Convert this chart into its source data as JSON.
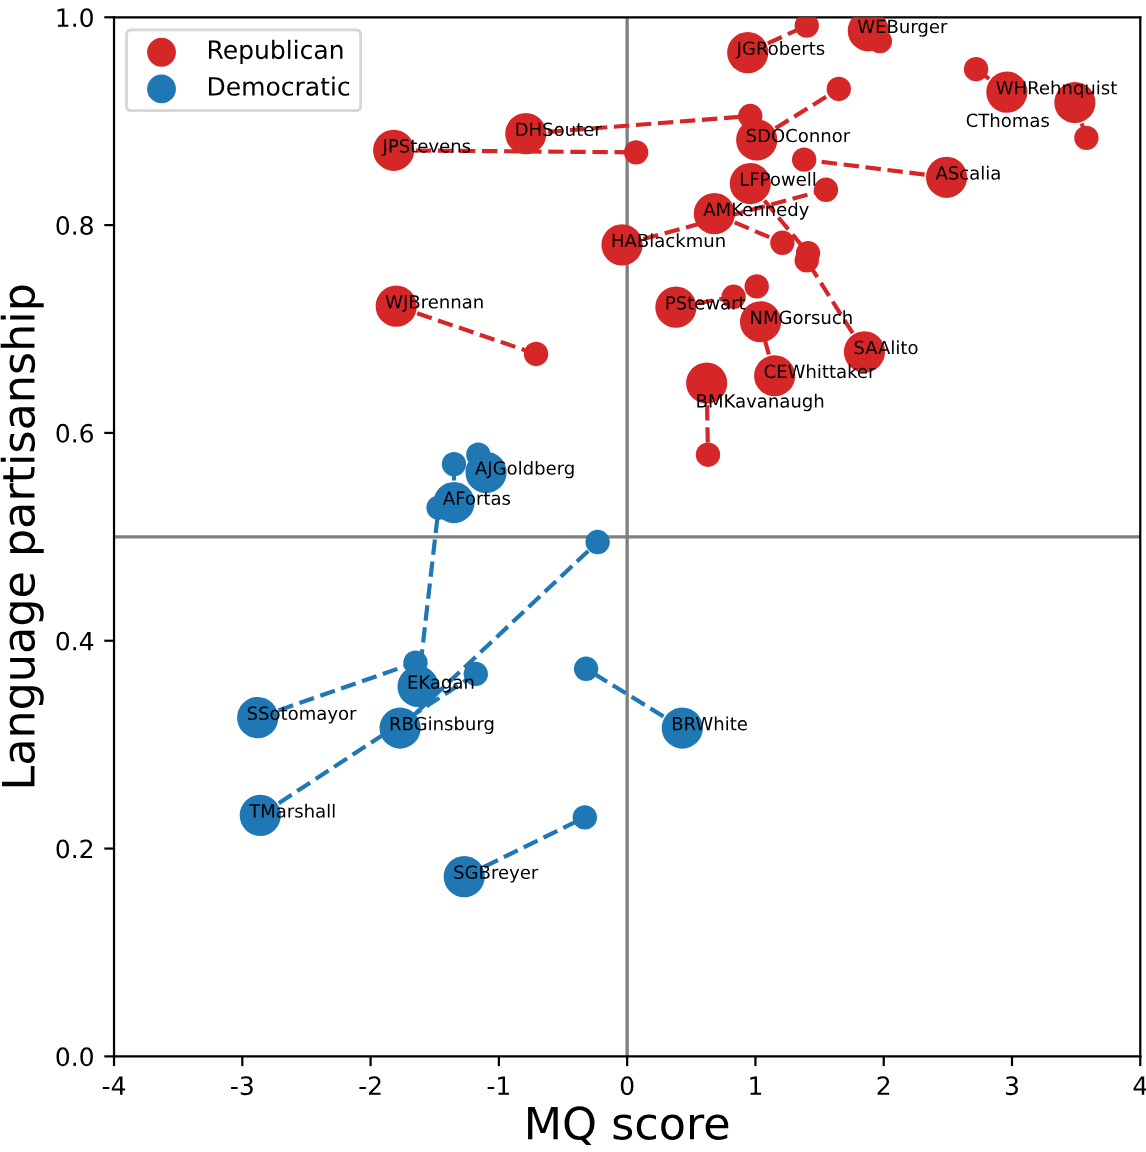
{
  "chart_data": {
    "type": "bubble",
    "xlabel": "MQ score",
    "ylabel": "Language partisanship",
    "xlim": [
      -4,
      4
    ],
    "ylim": [
      0,
      1.0
    ],
    "xticks": [
      -4,
      -3,
      -2,
      -1,
      0,
      1,
      2,
      3,
      4
    ],
    "yticks": [
      {
        "value": 0,
        "label": "0.0"
      },
      {
        "value": 0.2,
        "label": "0.2"
      },
      {
        "value": 0.4,
        "label": "0.4"
      },
      {
        "value": 0.6,
        "label": "0.6"
      },
      {
        "value": 0.8,
        "label": "0.8"
      },
      {
        "value": 1.0,
        "label": "1.0"
      }
    ],
    "grid": false,
    "legend": "top left",
    "ref_lines": [
      {
        "axis": "x",
        "value": 0,
        "color": "#808080"
      },
      {
        "axis": "y",
        "value": 0.5,
        "color": "#808080"
      }
    ],
    "series": [
      {
        "type": "line",
        "color": "#d62728",
        "line_style": "dashed",
        "marker": "none",
        "x": [
          0.94,
          1.4
        ],
        "values": [
          0.966,
          0.992
        ]
      },
      {
        "type": "line",
        "color": "#d62728",
        "line_style": "dashed",
        "marker": "none",
        "x": [
          2.96,
          2.72
        ],
        "values": [
          0.928,
          0.95
        ]
      },
      {
        "type": "line",
        "color": "#d62728",
        "line_style": "dashed",
        "marker": "none",
        "x": [
          3.49,
          3.58
        ],
        "values": [
          0.918,
          0.884
        ]
      },
      {
        "type": "line",
        "color": "#d62728",
        "line_style": "dashed",
        "marker": "none",
        "x": [
          1.01,
          1.65
        ],
        "values": [
          0.882,
          0.931
        ]
      },
      {
        "type": "line",
        "color": "#d62728",
        "line_style": "dashed",
        "marker": "none",
        "x": [
          -0.79,
          0.96
        ],
        "values": [
          0.888,
          0.905
        ]
      },
      {
        "type": "line",
        "color": "#d62728",
        "line_style": "dashed",
        "marker": "none",
        "x": [
          -1.82,
          0.07
        ],
        "values": [
          0.872,
          0.87
        ]
      },
      {
        "type": "line",
        "color": "#d62728",
        "line_style": "dashed",
        "marker": "none",
        "x": [
          2.49,
          1.38
        ],
        "values": [
          0.846,
          0.863
        ]
      },
      {
        "type": "line",
        "color": "#d62728",
        "line_style": "dashed",
        "marker": "none",
        "x": [
          0.96,
          1.41
        ],
        "values": [
          0.84,
          0.773
        ]
      },
      {
        "type": "line",
        "color": "#d62728",
        "line_style": "dashed",
        "marker": "none",
        "x": [
          0.68,
          1.21
        ],
        "values": [
          0.811,
          0.783
        ]
      },
      {
        "type": "line",
        "color": "#d62728",
        "line_style": "dashed",
        "marker": "none",
        "x": [
          -0.04,
          1.55
        ],
        "values": [
          0.781,
          0.834
        ]
      },
      {
        "type": "line",
        "color": "#d62728",
        "line_style": "dashed",
        "marker": "none",
        "x": [
          0.38,
          0.83
        ],
        "values": [
          0.721,
          0.731
        ]
      },
      {
        "type": "line",
        "color": "#d62728",
        "line_style": "dashed",
        "marker": "none",
        "x": [
          1.15,
          1.05
        ],
        "values": [
          0.655,
          0.7
        ]
      },
      {
        "type": "line",
        "color": "#d62728",
        "line_style": "dashed",
        "marker": "none",
        "x": [
          1.85,
          1.4
        ],
        "values": [
          0.678,
          0.766
        ]
      },
      {
        "type": "line",
        "color": "#d62728",
        "line_style": "dashed",
        "marker": "none",
        "x": [
          0.62,
          0.63
        ],
        "values": [
          0.648,
          0.579
        ]
      },
      {
        "type": "line",
        "color": "#d62728",
        "line_style": "dashed",
        "marker": "none",
        "x": [
          -1.8,
          -0.71
        ],
        "values": [
          0.722,
          0.676
        ]
      },
      {
        "type": "line",
        "color": "#1f77b4",
        "line_style": "dashed",
        "marker": "none",
        "x": [
          -1.35,
          -1.35
        ],
        "values": [
          0.533,
          0.57
        ]
      },
      {
        "type": "line",
        "color": "#1f77b4",
        "line_style": "dashed",
        "marker": "none",
        "x": [
          -1.63,
          -1.47
        ],
        "values": [
          0.356,
          0.528
        ]
      },
      {
        "type": "line",
        "color": "#1f77b4",
        "line_style": "dashed",
        "marker": "none",
        "x": [
          -2.88,
          -1.65
        ],
        "values": [
          0.326,
          0.379
        ]
      },
      {
        "type": "line",
        "color": "#1f77b4",
        "line_style": "dashed",
        "marker": "none",
        "x": [
          -1.77,
          -0.23
        ],
        "values": [
          0.316,
          0.495
        ]
      },
      {
        "type": "line",
        "color": "#1f77b4",
        "line_style": "dashed",
        "marker": "none",
        "x": [
          -2.86,
          -1.18
        ],
        "values": [
          0.232,
          0.368
        ]
      },
      {
        "type": "line",
        "color": "#1f77b4",
        "line_style": "dashed",
        "marker": "none",
        "x": [
          0.43,
          -0.32
        ],
        "values": [
          0.316,
          0.373
        ]
      },
      {
        "type": "line",
        "color": "#1f77b4",
        "line_style": "dashed",
        "marker": "none",
        "x": [
          -1.27,
          -0.33
        ],
        "values": [
          0.173,
          0.23
        ]
      },
      {
        "type": "bubble",
        "color": "#d62728",
        "sizes": [
          0.35,
          0.35,
          0.35,
          0.35,
          0.35,
          0.35,
          0.35,
          0.35,
          0.35,
          0.35,
          0.35,
          0.35,
          0.35,
          0.35,
          0.35,
          0.35
        ],
        "x": [
          1.97,
          1.4,
          2.72,
          3.58,
          1.65,
          0.96,
          0.07,
          1.38,
          1.41,
          1.21,
          1.55,
          0.83,
          1.01,
          1.4,
          0.63,
          -0.71
        ],
        "values": [
          0.977,
          0.992,
          0.95,
          0.884,
          0.931,
          0.905,
          0.87,
          0.863,
          0.773,
          0.783,
          0.834,
          0.731,
          0.741,
          0.766,
          0.579,
          0.676
        ]
      },
      {
        "type": "bubble",
        "color": "#1f77b4",
        "sizes": [
          0.35,
          0.35,
          0.35,
          0.35,
          0.35,
          0.35,
          0.35,
          0.35
        ],
        "x": [
          -1.16,
          -1.35,
          -1.47,
          -1.65,
          -0.23,
          -1.18,
          -0.32,
          -0.33
        ],
        "values": [
          0.579,
          0.57,
          0.528,
          0.379,
          0.495,
          0.368,
          0.373,
          0.23
        ]
      },
      {
        "name": "Republican",
        "color": "#d62728",
        "sizes": [
          1,
          1,
          1,
          1,
          1,
          1,
          1,
          1,
          1,
          1,
          1,
          1,
          1,
          1,
          1,
          1,
          1
        ],
        "x": [
          1.88,
          0.94,
          2.96,
          3.49,
          1.01,
          -0.79,
          -1.82,
          2.49,
          0.96,
          0.68,
          -0.04,
          0.38,
          1.04,
          1.15,
          1.85,
          0.62,
          -1.8
        ],
        "values": [
          0.987,
          0.966,
          0.928,
          0.918,
          0.882,
          0.888,
          0.872,
          0.846,
          0.84,
          0.811,
          0.781,
          0.721,
          0.707,
          0.655,
          0.678,
          0.648,
          0.722
        ],
        "value_labels": [
          "WEBurger",
          "JGRoberts",
          "WHRehnquist",
          "CThomas",
          "SDOConnor",
          "DHSouter",
          "JPStevens",
          "AScalia",
          "LFPowell",
          "AMKennedy",
          "HABlackmun",
          "PStewart",
          "NMGorsuch",
          "CEWhittaker",
          "SAAlito",
          "BMKavanaugh",
          "WJBrennan"
        ]
      },
      {
        "name": "Democratic",
        "color": "#1f77b4",
        "sizes": [
          1,
          1,
          1,
          1,
          1,
          1,
          1,
          1
        ],
        "x": [
          -1.1,
          -1.35,
          -1.63,
          -2.88,
          -1.77,
          -2.86,
          0.43,
          -1.27
        ],
        "values": [
          0.562,
          0.533,
          0.356,
          0.326,
          0.316,
          0.232,
          0.316,
          0.173
        ],
        "value_labels": [
          "AJGoldberg",
          "AFortas",
          "EKagan",
          "SSotomayor",
          "RBGinsburg",
          "TMarshall",
          "BRWhite",
          "SGBreyer"
        ]
      }
    ]
  }
}
